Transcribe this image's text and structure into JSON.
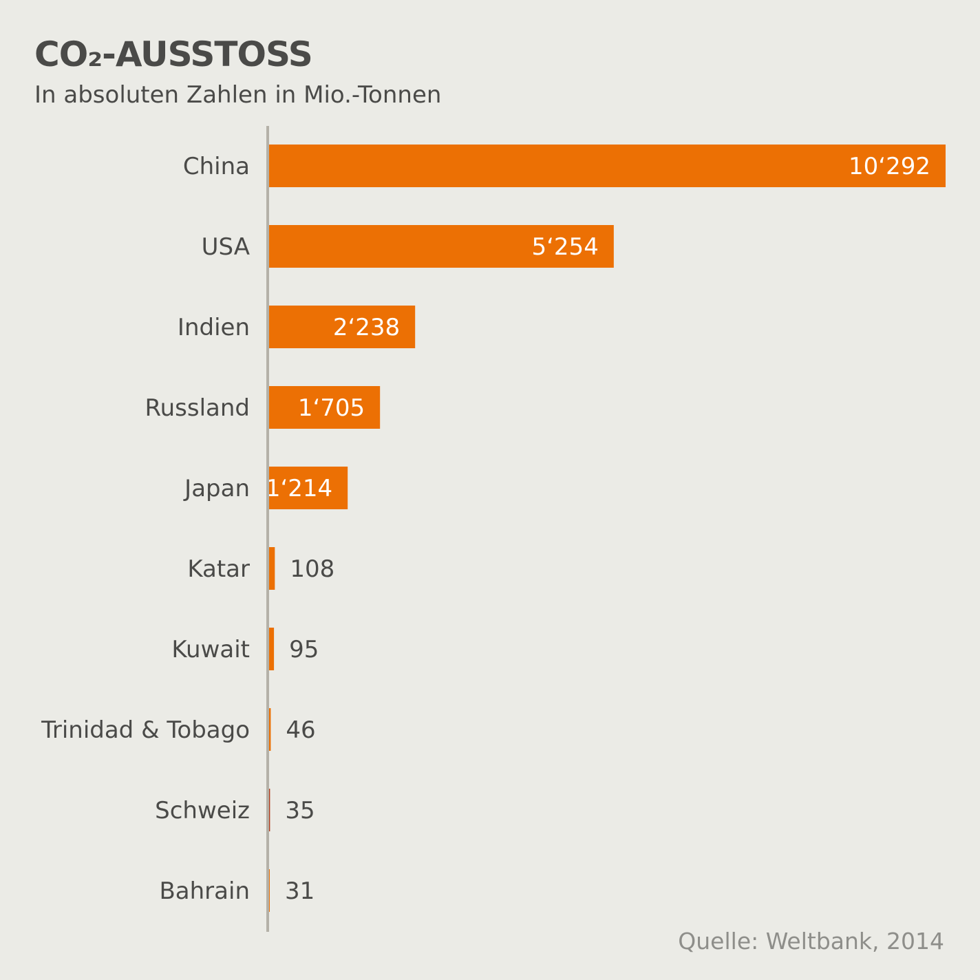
{
  "title": "CO₂-AUSSTOSS",
  "subtitle": "In absoluten Zahlen in Mio.-Tonnen",
  "source": "Quelle: Weltbank, 2014",
  "colors": {
    "bar": "#ec7004",
    "bar_highlight": "#b03a1a",
    "axis": "#b4b1a8",
    "label_inside": "#ffffff",
    "label_outside": "#4a4a48"
  },
  "chart_data": {
    "type": "bar",
    "orientation": "horizontal",
    "title": "CO₂-AUSSTOSS",
    "subtitle": "In absoluten Zahlen in Mio.-Tonnen",
    "categories": [
      "China",
      "USA",
      "Indien",
      "Russland",
      "Japan",
      "Katar",
      "Kuwait",
      "Trinidad & Tobago",
      "Schweiz",
      "Bahrain"
    ],
    "values": [
      10292,
      5254,
      2238,
      1705,
      1214,
      108,
      95,
      46,
      35,
      31
    ],
    "value_labels": [
      "10‘292",
      "5‘254",
      "2‘238",
      "1‘705",
      "1‘214",
      "108",
      "95",
      "46",
      "35",
      "31"
    ],
    "highlight": "Schweiz",
    "xlim": [
      0,
      10292
    ],
    "grid": false,
    "legend": "none"
  }
}
